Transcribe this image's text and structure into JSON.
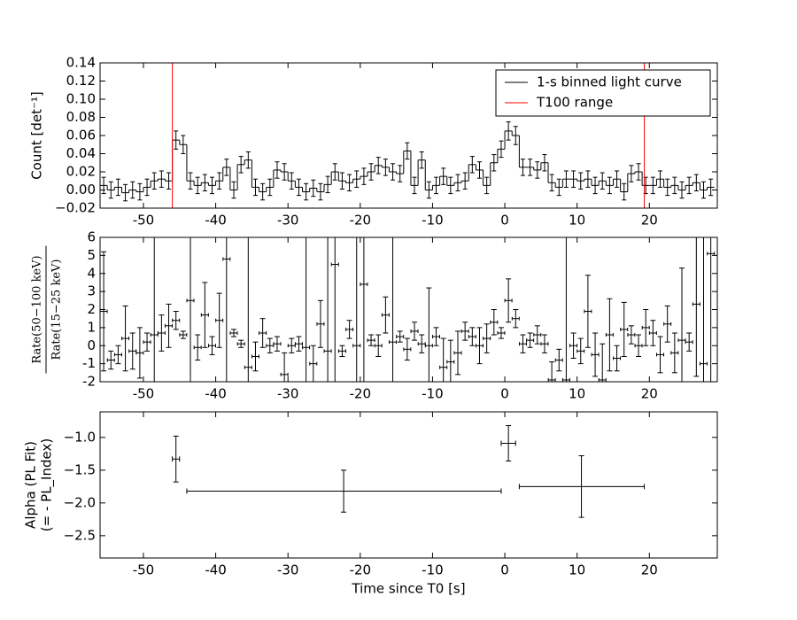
{
  "chart_data": [
    {
      "type": "step",
      "ylabel": "Count [det⁻¹]",
      "legend": "upper right",
      "xlim": [
        -56,
        29.4
      ],
      "xticks": [
        -50,
        -40,
        -30,
        -20,
        -10,
        0,
        10,
        20
      ],
      "ylim": [
        -0.02,
        0.14
      ],
      "yticks": [
        {
          "value": -0.02,
          "label": "−0.02"
        },
        {
          "value": 0,
          "label": "0.00"
        },
        {
          "value": 0.02,
          "label": "0.02"
        },
        {
          "value": 0.04,
          "label": "0.04"
        },
        {
          "value": 0.06,
          "label": "0.06"
        },
        {
          "value": 0.08,
          "label": "0.08"
        },
        {
          "value": 0.1,
          "label": "0.10"
        },
        {
          "value": 0.12,
          "label": "0.12"
        },
        {
          "value": 0.14,
          "label": "0.14"
        }
      ],
      "series": [
        {
          "name": "1-s binned light curve",
          "color": "#000000",
          "x": [
            -55.5,
            -54.5,
            -53.5,
            -52.5,
            -51.5,
            -50.5,
            -49.5,
            -48.5,
            -47.5,
            -46.5,
            -45.5,
            -44.5,
            -43.5,
            -42.5,
            -41.5,
            -40.5,
            -39.5,
            -38.5,
            -37.5,
            -36.5,
            -35.5,
            -34.5,
            -33.5,
            -32.5,
            -31.5,
            -30.5,
            -29.5,
            -28.5,
            -27.5,
            -26.5,
            -25.5,
            -24.5,
            -23.5,
            -22.5,
            -21.5,
            -20.5,
            -19.5,
            -18.5,
            -17.5,
            -16.5,
            -15.5,
            -14.5,
            -13.5,
            -12.5,
            -11.5,
            -10.5,
            -9.5,
            -8.5,
            -7.5,
            -6.5,
            -5.5,
            -4.5,
            -3.5,
            -2.5,
            -1.5,
            -0.5,
            0.5,
            1.5,
            2.5,
            3.5,
            4.5,
            5.5,
            6.5,
            7.5,
            8.5,
            9.5,
            10.5,
            11.5,
            12.5,
            13.5,
            14.5,
            15.5,
            16.5,
            17.5,
            18.5,
            19.5,
            20.5,
            21.5,
            22.5,
            23.5,
            24.5,
            25.5,
            26.5,
            27.5,
            28.5
          ],
          "values": [
            0.005,
            0.0,
            0.003,
            -0.003,
            0.0,
            -0.002,
            0.003,
            0.01,
            0.012,
            0.01,
            0.055,
            0.05,
            0.01,
            0.005,
            0.008,
            0.005,
            0.01,
            0.025,
            0.0,
            0.028,
            0.033,
            0.003,
            -0.002,
            0.003,
            0.022,
            0.02,
            0.01,
            0.003,
            -0.002,
            0.002,
            -0.002,
            0.006,
            0.02,
            0.01,
            0.008,
            0.012,
            0.015,
            0.02,
            0.027,
            0.025,
            0.02,
            0.018,
            0.043,
            0.005,
            0.033,
            0.0,
            0.005,
            0.015,
            0.005,
            0.008,
            0.01,
            0.028,
            0.022,
            0.005,
            0.03,
            0.045,
            0.065,
            0.06,
            0.025,
            0.025,
            0.022,
            0.03,
            0.008,
            0.003,
            0.012,
            0.012,
            0.01,
            0.012,
            0.005,
            0.01,
            0.005,
            0.012,
            -0.002,
            0.018,
            0.02,
            0.005,
            0.005,
            0.012,
            0.003,
            0.005,
            0.0,
            0.005,
            0.008,
            0.0,
            0.003
          ],
          "errors": [
            0.009,
            0.009,
            0.009,
            0.009,
            0.009,
            0.009,
            0.009,
            0.009,
            0.009,
            0.009,
            0.01,
            0.01,
            0.009,
            0.009,
            0.009,
            0.009,
            0.009,
            0.009,
            0.009,
            0.009,
            0.009,
            0.009,
            0.009,
            0.009,
            0.009,
            0.009,
            0.009,
            0.009,
            0.009,
            0.009,
            0.009,
            0.009,
            0.009,
            0.009,
            0.009,
            0.009,
            0.009,
            0.009,
            0.009,
            0.009,
            0.009,
            0.009,
            0.009,
            0.009,
            0.009,
            0.009,
            0.009,
            0.009,
            0.009,
            0.009,
            0.009,
            0.009,
            0.009,
            0.009,
            0.009,
            0.009,
            0.01,
            0.01,
            0.009,
            0.009,
            0.009,
            0.009,
            0.009,
            0.009,
            0.009,
            0.009,
            0.009,
            0.009,
            0.009,
            0.009,
            0.009,
            0.009,
            0.009,
            0.009,
            0.009,
            0.009,
            0.009,
            0.009,
            0.009,
            0.009,
            0.009,
            0.009,
            0.009,
            0.009,
            0.009
          ]
        }
      ],
      "vlines": {
        "name": "T100 range",
        "color": "#ff0000",
        "x": [
          -46,
          19.3
        ]
      }
    },
    {
      "type": "errorbar",
      "ylabel_numerator": "Rate(50−100 keV)",
      "ylabel_denominator": "Rate(15−25 keV)",
      "xlim": [
        -56,
        29.4
      ],
      "xticks": [
        -50,
        -40,
        -30,
        -20,
        -10,
        0,
        10,
        20
      ],
      "ylim": [
        -2,
        6
      ],
      "yticks": [
        -2,
        -1,
        0,
        1,
        2,
        3,
        4,
        5,
        6
      ],
      "color": "#000000",
      "x": [
        -55.5,
        -54.5,
        -53.5,
        -52.5,
        -51.5,
        -50.5,
        -49.5,
        -48.5,
        -47.5,
        -46.5,
        -45.5,
        -44.5,
        -43.5,
        -42.5,
        -41.5,
        -40.5,
        -39.5,
        -38.5,
        -37.5,
        -36.5,
        -35.5,
        -34.5,
        -33.5,
        -32.5,
        -31.5,
        -30.5,
        -29.5,
        -28.5,
        -27.5,
        -26.5,
        -25.5,
        -24.5,
        -23.5,
        -22.5,
        -21.5,
        -20.5,
        -19.5,
        -18.5,
        -17.5,
        -16.5,
        -15.5,
        -14.5,
        -13.5,
        -12.5,
        -11.5,
        -10.5,
        -9.5,
        -8.5,
        -7.5,
        -6.5,
        -5.5,
        -4.5,
        -3.5,
        -2.5,
        -1.5,
        -0.5,
        0.5,
        1.5,
        2.5,
        3.5,
        4.5,
        5.5,
        6.5,
        7.5,
        8.5,
        9.5,
        10.5,
        11.5,
        12.5,
        13.5,
        14.5,
        15.5,
        16.5,
        17.5,
        18.5,
        19.5,
        20.5,
        21.5,
        22.5,
        23.5,
        24.5,
        25.5,
        26.5,
        27.5,
        28.5
      ],
      "values": [
        1.9,
        -0.8,
        -0.5,
        0.4,
        -0.3,
        -0.4,
        0.2,
        0.6,
        0.7,
        1.1,
        1.4,
        0.6,
        2.5,
        -0.1,
        1.7,
        0.0,
        1.4,
        4.8,
        0.7,
        0.1,
        -1.2,
        -0.6,
        0.7,
        0.0,
        0.1,
        -1.6,
        0.0,
        0.1,
        -0.1,
        -1.0,
        1.2,
        -0.3,
        4.5,
        -0.3,
        0.9,
        0.0,
        3.4,
        0.3,
        0.0,
        1.7,
        0.2,
        0.5,
        -0.2,
        0.8,
        0.1,
        0.0,
        0.5,
        -1.2,
        -0.9,
        -0.4,
        0.8,
        0.5,
        0.0,
        0.4,
        1.3,
        0.7,
        2.5,
        1.5,
        0.1,
        0.3,
        0.6,
        0.1,
        -1.9,
        -0.8,
        -1.9,
        0.0,
        -0.3,
        1.9,
        -0.5,
        -1.9,
        0.6,
        -0.7,
        0.9,
        0.6,
        0.0,
        1.0,
        0.7,
        -0.5,
        1.2,
        -0.4,
        0.3,
        0.2,
        2.3,
        -1.0,
        5.1
      ],
      "errors": [
        3.3,
        0.5,
        0.5,
        1.8,
        1.0,
        1.4,
        0.5,
        8,
        1.0,
        1.2,
        0.5,
        0.2,
        8,
        0.7,
        1.8,
        0.5,
        1.5,
        8,
        0.2,
        0.2,
        8,
        0.8,
        0.8,
        0.4,
        0.4,
        1.2,
        0.4,
        0.4,
        8,
        1.0,
        1.3,
        8,
        8,
        0.3,
        0.5,
        8,
        8,
        0.3,
        0.6,
        1.0,
        8,
        0.3,
        0.6,
        0.5,
        0.5,
        3.2,
        0.5,
        1.6,
        1.2,
        1.2,
        0.5,
        0.5,
        1.0,
        0.8,
        0.7,
        0.3,
        1.2,
        0.5,
        0.5,
        0.4,
        0.5,
        0.5,
        1.0,
        0.6,
        8,
        0.7,
        0.7,
        2.0,
        1.2,
        2.0,
        2.0,
        0.7,
        1.5,
        0.5,
        0.6,
        1.0,
        0.7,
        1.0,
        1.0,
        1.1,
        4.0,
        0.5,
        4.0,
        8,
        8
      ]
    },
    {
      "type": "errorbar",
      "ylabel": [
        "Alpha (PL Fit)",
        "(= - PL_Index)"
      ],
      "xlabel": "Time since T0 [s]",
      "xlim": [
        -56,
        29.4
      ],
      "xticks": [
        -50,
        -40,
        -30,
        -20,
        -10,
        0,
        10,
        20
      ],
      "ylim": [
        -2.84,
        -0.61
      ],
      "yticks": [
        {
          "value": -2.5,
          "label": "−2.5"
        },
        {
          "value": -2,
          "label": "−2.0"
        },
        {
          "value": -1.5,
          "label": "−1.5"
        },
        {
          "value": -1,
          "label": "−1.0"
        }
      ],
      "color": "#000000",
      "x": [
        -45.5,
        -22.3,
        0.5,
        10.6
      ],
      "x_low": [
        -46,
        -44,
        -0.5,
        2
      ],
      "x_high": [
        -45,
        -0.5,
        1.5,
        19.3
      ],
      "values": [
        -1.33,
        -1.82,
        -1.09,
        -1.75
      ],
      "errors": [
        0.35,
        0.32,
        0.27,
        0.47
      ]
    }
  ]
}
